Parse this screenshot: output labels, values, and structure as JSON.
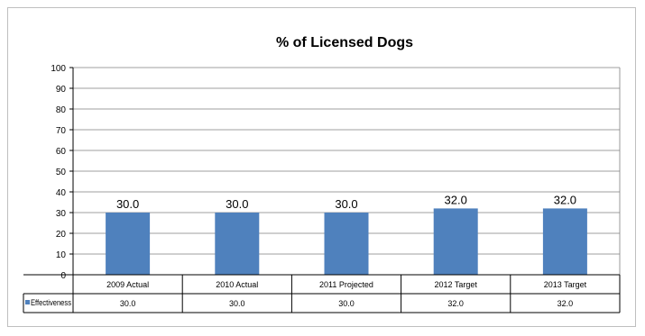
{
  "chart_data": {
    "type": "bar",
    "title": "% of Licensed Dogs",
    "categories": [
      "2009 Actual",
      "2010 Actual",
      "2011 Projected",
      "2012 Target",
      "2013 Target"
    ],
    "series": [
      {
        "name": "Effectiveness",
        "values": [
          30.0,
          30.0,
          30.0,
          32.0,
          32.0
        ],
        "color": "#4f81bd"
      }
    ],
    "data_labels": [
      "30.0",
      "30.0",
      "30.0",
      "32.0",
      "32.0"
    ],
    "table_values": [
      "30.0",
      "30.0",
      "30.0",
      "32.0",
      "32.0"
    ],
    "ylim": [
      0,
      100
    ],
    "yticks": [
      0,
      10,
      20,
      30,
      40,
      50,
      60,
      70,
      80,
      90,
      100
    ],
    "grid": true,
    "legend": "data-table"
  }
}
